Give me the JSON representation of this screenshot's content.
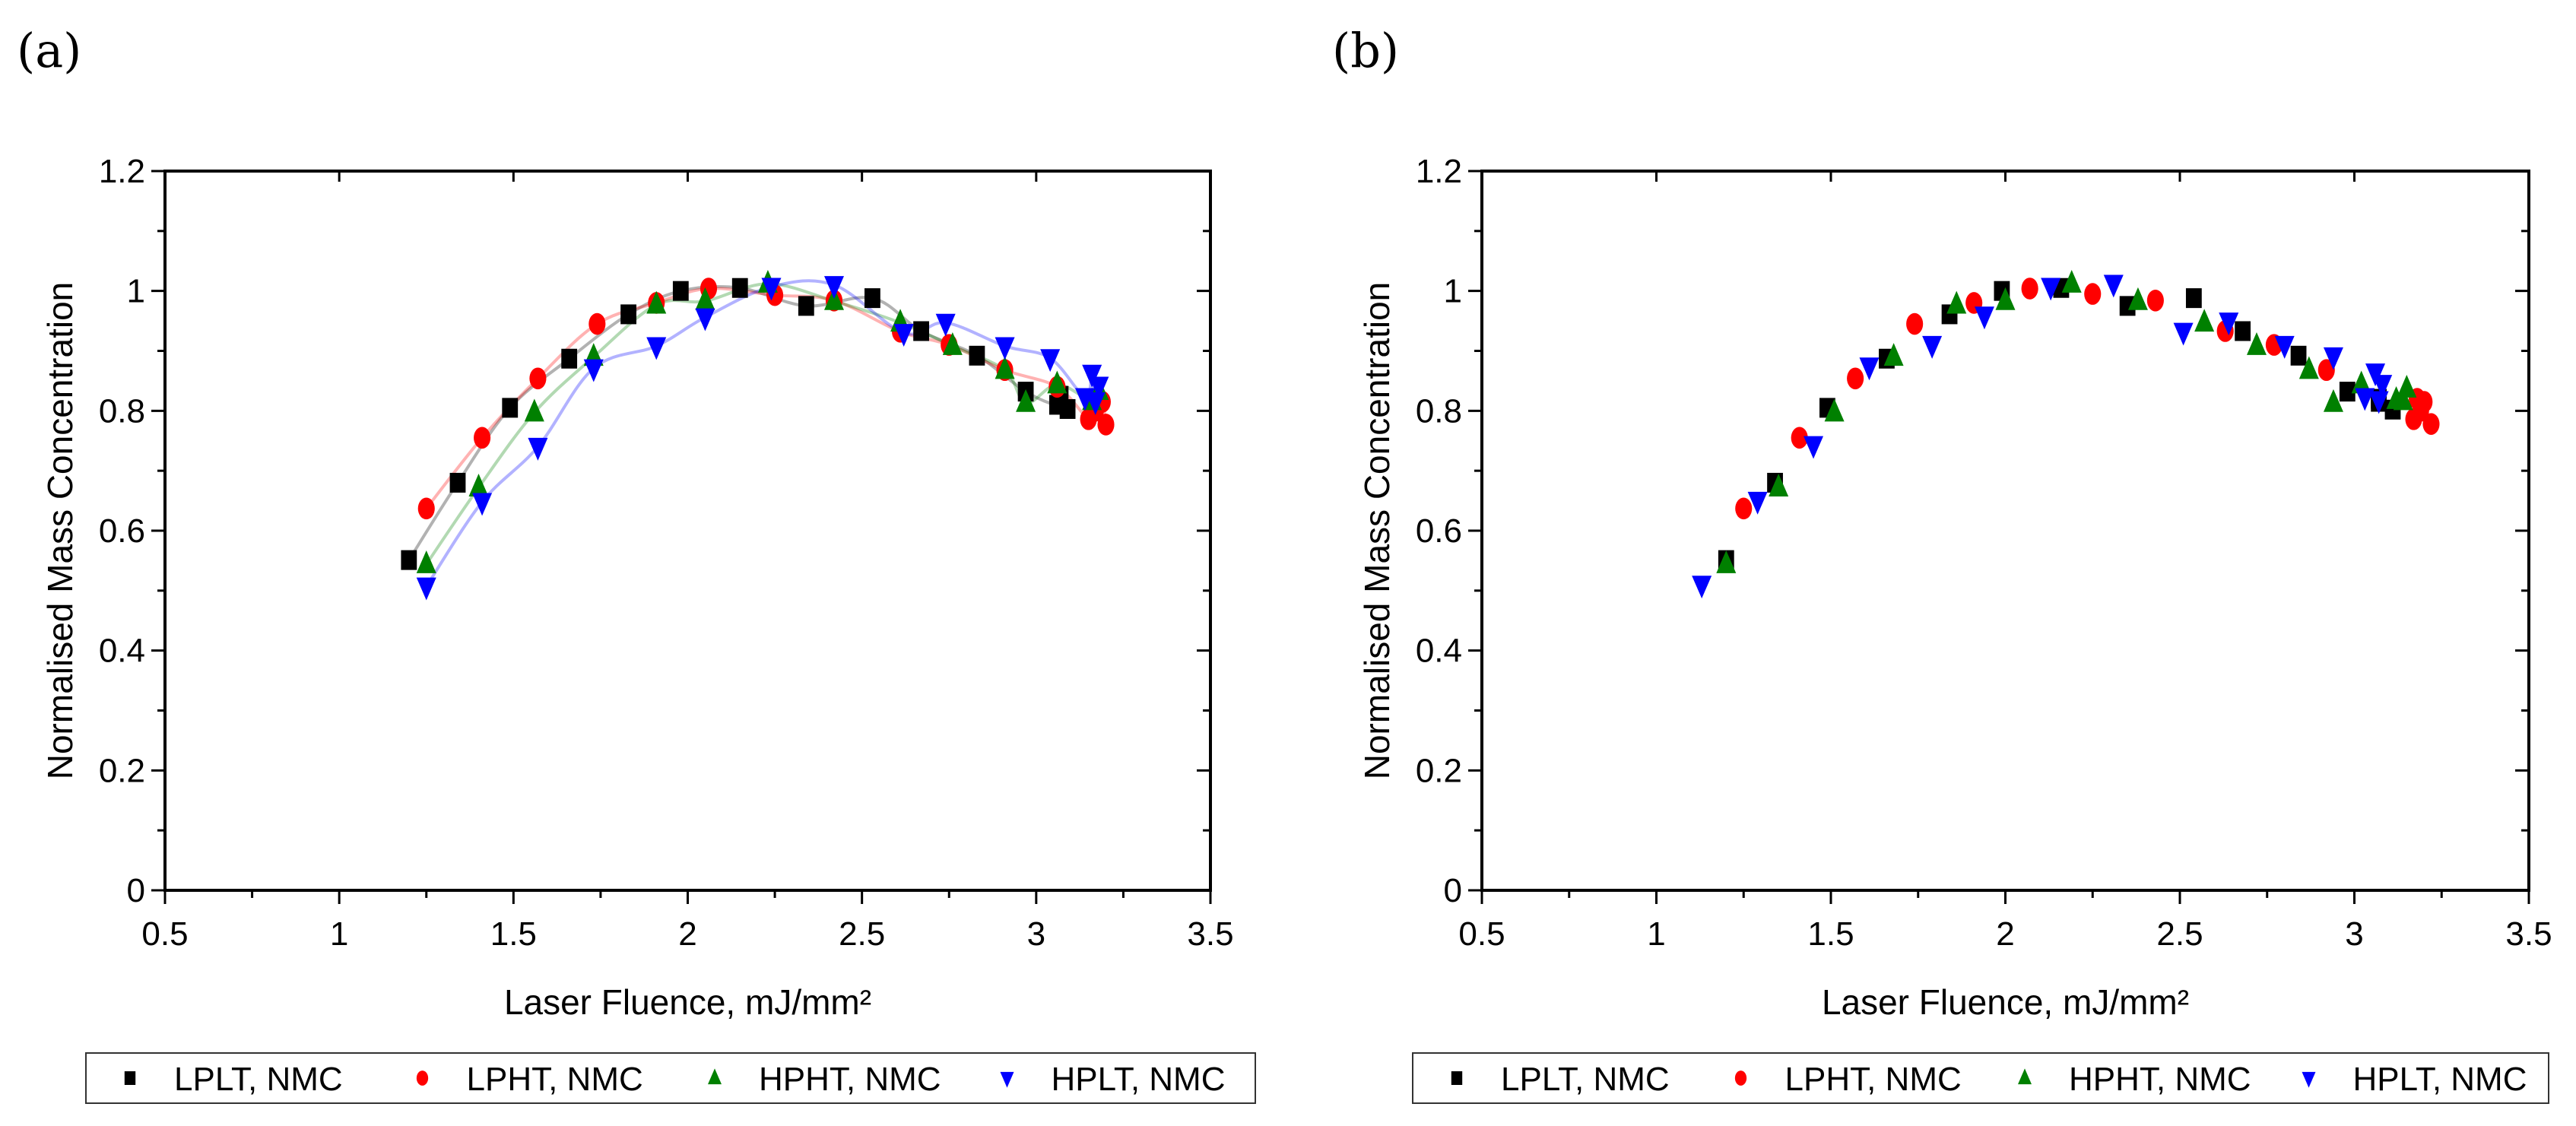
{
  "colors": {
    "LPLT": "#000000",
    "LPHT": "#ff0000",
    "HPHT": "#008000",
    "HPLT": "#0000ff"
  },
  "chart_data": [
    {
      "panel_label": "(a)",
      "type": "scatter",
      "fit_lines": true,
      "xlabel": "Laser Fluence, mJ/mm²",
      "ylabel": "Normalised Mass Concentration",
      "xlim": [
        0.5,
        3.5
      ],
      "ylim": [
        0,
        1.2
      ],
      "xticks": [
        "0.5",
        "1",
        "1.5",
        "2",
        "2.5",
        "3",
        "3.5"
      ],
      "yticks": [
        "0",
        "0.2",
        "0.4",
        "0.6",
        "0.8",
        "1",
        "1.2"
      ],
      "legend_position": "bottom",
      "series": [
        {
          "name": "LPLT, NMC",
          "key": "LPLT",
          "marker": "square",
          "points": [
            [
              1.2,
              0.551
            ],
            [
              1.34,
              0.68
            ],
            [
              1.49,
              0.805
            ],
            [
              1.66,
              0.887
            ],
            [
              1.83,
              0.961
            ],
            [
              1.98,
              1.0
            ],
            [
              2.15,
              1.005
            ],
            [
              2.34,
              0.975
            ],
            [
              2.53,
              0.988
            ],
            [
              2.67,
              0.933
            ],
            [
              2.83,
              0.892
            ],
            [
              2.97,
              0.832
            ],
            [
              3.06,
              0.81
            ],
            [
              3.07,
              0.825
            ],
            [
              3.09,
              0.803
            ]
          ]
        },
        {
          "name": "LPHT, NMC",
          "key": "LPHT",
          "marker": "circle",
          "points": [
            [
              1.25,
              0.637
            ],
            [
              1.41,
              0.755
            ],
            [
              1.57,
              0.854
            ],
            [
              1.74,
              0.945
            ],
            [
              1.91,
              0.98
            ],
            [
              2.06,
              1.004
            ],
            [
              2.25,
              0.993
            ],
            [
              2.42,
              0.984
            ],
            [
              2.61,
              0.932
            ],
            [
              2.75,
              0.91
            ],
            [
              2.91,
              0.868
            ],
            [
              3.06,
              0.84
            ],
            [
              3.15,
              0.786
            ],
            [
              3.17,
              0.8
            ],
            [
              3.19,
              0.815
            ],
            [
              3.2,
              0.777
            ]
          ]
        },
        {
          "name": "HPHT, NMC",
          "key": "HPHT",
          "marker": "triangle-up",
          "points": [
            [
              1.25,
              0.544
            ],
            [
              1.4,
              0.672
            ],
            [
              1.56,
              0.797
            ],
            [
              1.73,
              0.89
            ],
            [
              1.91,
              0.977
            ],
            [
              2.05,
              0.983
            ],
            [
              2.23,
              1.012
            ],
            [
              2.42,
              0.983
            ],
            [
              2.61,
              0.947
            ],
            [
              2.76,
              0.908
            ],
            [
              2.91,
              0.868
            ],
            [
              2.97,
              0.813
            ],
            [
              3.06,
              0.844
            ],
            [
              3.16,
              0.816
            ],
            [
              3.18,
              0.833
            ]
          ]
        },
        {
          "name": "HPLT, NMC",
          "key": "HPLT",
          "marker": "triangle-down",
          "points": [
            [
              1.25,
              0.507
            ],
            [
              1.41,
              0.648
            ],
            [
              1.57,
              0.74
            ],
            [
              1.73,
              0.871
            ],
            [
              1.91,
              0.908
            ],
            [
              2.05,
              0.956
            ],
            [
              2.24,
              1.007
            ],
            [
              2.42,
              1.01
            ],
            [
              2.62,
              0.93
            ],
            [
              2.74,
              0.947
            ],
            [
              2.91,
              0.908
            ],
            [
              3.04,
              0.888
            ],
            [
              3.14,
              0.823
            ],
            [
              3.16,
              0.862
            ],
            [
              3.17,
              0.816
            ],
            [
              3.18,
              0.842
            ]
          ]
        }
      ]
    },
    {
      "panel_label": "(b)",
      "type": "scatter",
      "fit_lines": false,
      "xlabel": "Laser Fluence, mJ/mm²",
      "ylabel": "Normalised Mass Concentration",
      "xlim": [
        0.5,
        3.5
      ],
      "ylim": [
        0,
        1.2
      ],
      "xticks": [
        "0.5",
        "1",
        "1.5",
        "2",
        "2.5",
        "3",
        "3.5"
      ],
      "yticks": [
        "0",
        "0.2",
        "0.4",
        "0.6",
        "0.8",
        "1",
        "1.2"
      ],
      "legend_position": "bottom",
      "series": [
        {
          "name": "LPLT, NMC",
          "key": "LPLT",
          "marker": "square",
          "points": [
            [
              1.2,
              0.551
            ],
            [
              1.34,
              0.68
            ],
            [
              1.49,
              0.805
            ],
            [
              1.66,
              0.887
            ],
            [
              1.84,
              0.961
            ],
            [
              1.99,
              1.0
            ],
            [
              2.16,
              1.005
            ],
            [
              2.35,
              0.975
            ],
            [
              2.54,
              0.988
            ],
            [
              2.68,
              0.933
            ],
            [
              2.84,
              0.892
            ],
            [
              2.98,
              0.832
            ],
            [
              3.07,
              0.815
            ],
            [
              3.07,
              0.82
            ],
            [
              3.11,
              0.802
            ]
          ]
        },
        {
          "name": "LPHT, NMC",
          "key": "LPHT",
          "marker": "circle",
          "points": [
            [
              1.25,
              0.637
            ],
            [
              1.41,
              0.755
            ],
            [
              1.57,
              0.854
            ],
            [
              1.74,
              0.945
            ],
            [
              1.91,
              0.98
            ],
            [
              2.07,
              1.004
            ],
            [
              2.25,
              0.995
            ],
            [
              2.43,
              0.984
            ],
            [
              2.63,
              0.933
            ],
            [
              2.77,
              0.91
            ],
            [
              2.92,
              0.868
            ],
            [
              3.17,
              0.786
            ],
            [
              3.18,
              0.82
            ],
            [
              3.19,
              0.8
            ],
            [
              3.2,
              0.815
            ],
            [
              3.22,
              0.778
            ]
          ]
        },
        {
          "name": "HPHT, NMC",
          "key": "HPHT",
          "marker": "triangle-up",
          "points": [
            [
              1.2,
              0.544
            ],
            [
              1.35,
              0.672
            ],
            [
              1.51,
              0.797
            ],
            [
              1.68,
              0.89
            ],
            [
              1.86,
              0.977
            ],
            [
              2.0,
              0.983
            ],
            [
              2.19,
              1.012
            ],
            [
              2.38,
              0.983
            ],
            [
              2.57,
              0.947
            ],
            [
              2.72,
              0.908
            ],
            [
              2.87,
              0.868
            ],
            [
              2.94,
              0.813
            ],
            [
              3.02,
              0.844
            ],
            [
              3.12,
              0.818
            ],
            [
              3.14,
              0.816
            ],
            [
              3.15,
              0.837
            ]
          ]
        },
        {
          "name": "HPLT, NMC",
          "key": "HPLT",
          "marker": "triangle-down",
          "points": [
            [
              1.13,
              0.51
            ],
            [
              1.29,
              0.65
            ],
            [
              1.45,
              0.743
            ],
            [
              1.61,
              0.874
            ],
            [
              1.79,
              0.91
            ],
            [
              1.94,
              0.959
            ],
            [
              2.13,
              1.007
            ],
            [
              2.31,
              1.012
            ],
            [
              2.51,
              0.932
            ],
            [
              2.64,
              0.949
            ],
            [
              2.8,
              0.91
            ],
            [
              2.94,
              0.891
            ],
            [
              3.03,
              0.823
            ],
            [
              3.06,
              0.864
            ],
            [
              3.07,
              0.818
            ],
            [
              3.08,
              0.845
            ]
          ]
        }
      ]
    }
  ]
}
